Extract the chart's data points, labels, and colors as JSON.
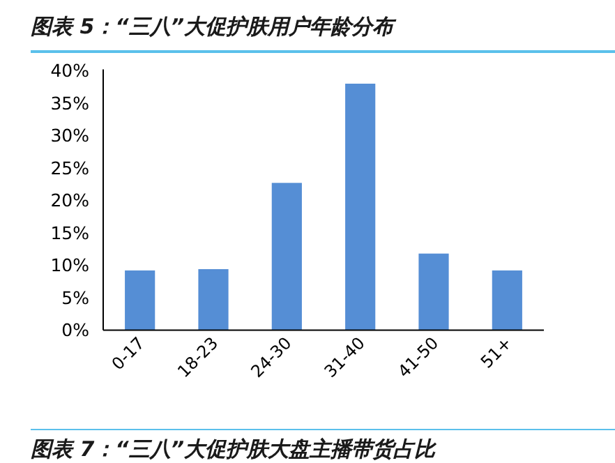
{
  "chart_data": {
    "type": "bar",
    "title": "图表 5：“三八”大促护肤用户年龄分布",
    "categories": [
      "0-17",
      "18-23",
      "24-30",
      "31-40",
      "41-50",
      "51+"
    ],
    "values": [
      9.2,
      9.4,
      22.7,
      38.0,
      11.8,
      9.2
    ],
    "color": "#558ed5",
    "ylim": [
      0,
      40
    ],
    "yticks": [
      {
        "value": 0,
        "label": "0%"
      },
      {
        "value": 5,
        "label": "5%"
      },
      {
        "value": 10,
        "label": "10%"
      },
      {
        "value": 15,
        "label": "15%"
      },
      {
        "value": 20,
        "label": "20%"
      },
      {
        "value": 25,
        "label": "25%"
      },
      {
        "value": 30,
        "label": "30%"
      },
      {
        "value": 35,
        "label": "35%"
      },
      {
        "value": 40,
        "label": "40%"
      }
    ],
    "annotations": [
      "图表 7：“三八”大促护肤大盘主播带货占比"
    ]
  }
}
